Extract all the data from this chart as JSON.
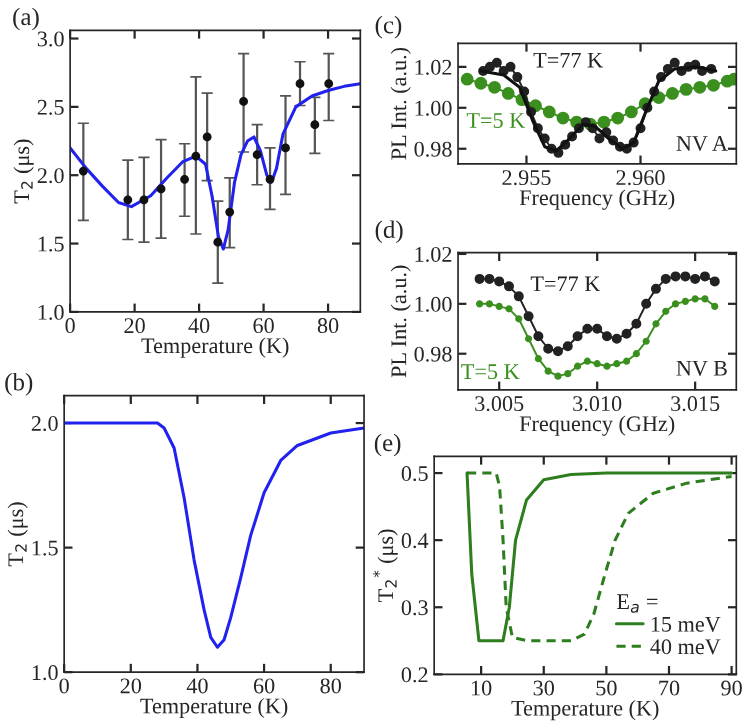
{
  "chart_data": [
    {
      "type": "scatter",
      "title": "(a)",
      "xlabel": "Temperature (K)",
      "ylabel": "T$_{2}$ (μs)",
      "xlim": [
        0,
        90
      ],
      "ylim": [
        1.0,
        3.06
      ],
      "xticks": [
        0,
        20,
        40,
        60,
        80
      ],
      "yticks": [
        {
          "value": 1.0,
          "label": "1.0"
        },
        {
          "value": 1.5,
          "label": "1.5"
        },
        {
          "value": 2.0,
          "label": "2.0"
        },
        {
          "value": 2.5,
          "label": "2.5"
        },
        {
          "value": 3.0,
          "label": "3.0"
        }
      ],
      "series": [
        {
          "type": "scatter",
          "color": "#111111",
          "marker": "circle",
          "x": [
            4.1,
            17.9,
            22.9,
            28.2,
            35.5,
            39,
            42.5,
            45.8,
            49.5,
            53.8,
            58,
            62,
            66.8,
            71.3,
            75.9,
            80.2
          ],
          "values": [
            2.03,
            1.82,
            1.82,
            1.9,
            1.97,
            2.14,
            2.28,
            1.51,
            1.73,
            2.54,
            2.15,
            1.97,
            2.2,
            2.67,
            2.37,
            2.67
          ],
          "errors": [
            [
              1.67,
              2.38
            ],
            [
              1.53,
              2.11
            ],
            [
              1.51,
              2.13
            ],
            [
              1.54,
              2.26
            ],
            [
              1.7,
              2.23
            ],
            [
              1.57,
              2.72
            ],
            [
              1.96,
              2.6
            ],
            [
              1.21,
              1.81
            ],
            [
              1.47,
              1.98
            ],
            [
              2.17,
              2.89
            ],
            [
              1.93,
              2.37
            ],
            [
              1.75,
              2.2
            ],
            [
              1.86,
              2.58
            ],
            [
              2.51,
              2.83
            ],
            [
              2.16,
              2.57
            ],
            [
              2.4,
              2.89
            ]
          ]
        },
        {
          "type": "line",
          "color": "#2222ee",
          "x": [
            0,
            5,
            10,
            15,
            19,
            25,
            30,
            35,
            39,
            42,
            44,
            46,
            47.5,
            49,
            51,
            53,
            55,
            57,
            59,
            61,
            62.5,
            64,
            66,
            70,
            75,
            80,
            85,
            90
          ],
          "values": [
            2.2,
            2.05,
            1.92,
            1.8,
            1.77,
            1.85,
            1.98,
            2.1,
            2.14,
            2.08,
            1.85,
            1.55,
            1.46,
            1.6,
            1.95,
            2.15,
            2.25,
            2.28,
            2.18,
            2.0,
            1.95,
            2.05,
            2.3,
            2.5,
            2.58,
            2.62,
            2.65,
            2.67
          ]
        }
      ]
    },
    {
      "type": "line",
      "title": "(b)",
      "xlabel": "Temperature (K)",
      "ylabel": "T$_{2}$ (μs)",
      "xlim": [
        0,
        90
      ],
      "ylim": [
        1.0,
        2.11
      ],
      "xticks": [
        0,
        20,
        40,
        60,
        80
      ],
      "yticks": [
        {
          "value": 1.0,
          "label": "1.0"
        },
        {
          "value": 1.5,
          "label": "1.5"
        },
        {
          "value": 2.0,
          "label": "2.0"
        }
      ],
      "series": [
        {
          "color": "#2222ee",
          "x": [
            0,
            10,
            20,
            28,
            30,
            33,
            36,
            39,
            42,
            44,
            46,
            48,
            50,
            53,
            56,
            60,
            65,
            70,
            80,
            90
          ],
          "values": [
            2.0,
            2.0,
            2.0,
            2.0,
            1.98,
            1.9,
            1.7,
            1.45,
            1.25,
            1.14,
            1.1,
            1.13,
            1.22,
            1.38,
            1.55,
            1.72,
            1.85,
            1.91,
            1.96,
            1.98
          ]
        }
      ]
    },
    {
      "type": "line",
      "title": "(c)",
      "xlabel": "Frequency (GHz)",
      "ylabel": "PL Int. (a.u.)",
      "annotations": [
        "NV A"
      ],
      "xlim": [
        2.952,
        2.9642
      ],
      "ylim": [
        0.9726,
        1.0315
      ],
      "xticks": [
        {
          "value": 2.955,
          "label": "2.955"
        },
        {
          "value": 2.96,
          "label": "2.960"
        }
      ],
      "yticks": [
        {
          "value": 0.98,
          "label": "0.98"
        },
        {
          "value": 1.0,
          "label": "1.00"
        },
        {
          "value": 1.02,
          "label": "1.02"
        }
      ],
      "series": [
        {
          "name": "T=5 K",
          "color": "#3a8f1e",
          "marker": "circle",
          "x": [
            2.9524,
            2.953,
            2.9536,
            2.9542,
            2.9548,
            2.9554,
            2.956,
            2.9566,
            2.9572,
            2.9578,
            2.9584,
            2.959,
            2.9596,
            2.9602,
            2.9608,
            2.9614,
            2.962,
            2.9626,
            2.9632,
            2.9638,
            2.9641
          ],
          "values": [
            1.014,
            1.012,
            1.01,
            1.007,
            1.004,
            1.001,
            0.998,
            0.995,
            0.993,
            0.992,
            0.993,
            0.995,
            0.998,
            1.002,
            1.005,
            1.007,
            1.009,
            1.01,
            1.011,
            1.013,
            1.014
          ]
        },
        {
          "name": "T=77 K",
          "color": "#222222",
          "marker": "circle",
          "x": [
            2.9531,
            2.9534,
            2.9537,
            2.954,
            2.9543,
            2.9546,
            2.9549,
            2.9552,
            2.9555,
            2.9558,
            2.9561,
            2.9564,
            2.9567,
            2.957,
            2.9573,
            2.9576,
            2.9579,
            2.9582,
            2.9585,
            2.9588,
            2.9591,
            2.9594,
            2.9597,
            2.96,
            2.9603,
            2.9606,
            2.9609,
            2.9612,
            2.9615,
            2.9618,
            2.9621,
            2.9624,
            2.9627,
            2.9631
          ],
          "values": [
            1.018,
            1.02,
            1.022,
            1.018,
            1.02,
            1.015,
            1.008,
            0.998,
            0.99,
            0.985,
            0.98,
            0.978,
            0.982,
            0.986,
            0.99,
            0.993,
            0.99,
            0.985,
            0.988,
            0.984,
            0.981,
            0.98,
            0.983,
            0.99,
            1.0,
            1.008,
            1.015,
            1.019,
            1.022,
            1.018,
            1.02,
            1.021,
            1.018,
            1.019
          ]
        },
        {
          "color": "#111111",
          "x": [
            2.953,
            2.954,
            2.9547,
            2.9553,
            2.9558,
            2.9563,
            2.9568,
            2.9575,
            2.958,
            2.9586,
            2.9592,
            2.9597,
            2.9603,
            2.9608,
            2.9615,
            2.9625,
            2.9633
          ],
          "values": [
            1.018,
            1.016,
            1.01,
            0.993,
            0.981,
            0.979,
            0.984,
            0.992,
            0.991,
            0.985,
            0.98,
            0.983,
            1.0,
            1.013,
            1.019,
            1.02,
            1.018
          ]
        }
      ]
    },
    {
      "type": "line",
      "title": "(d)",
      "xlabel": "Frequency (GHz)",
      "ylabel": "PL Int. (a.u.)",
      "annotations": [
        "NV B"
      ],
      "xlim": [
        3.0029,
        3.0171
      ],
      "ylim": [
        0.9655,
        1.0205
      ],
      "xticks": [
        {
          "value": 3.005,
          "label": "3.005"
        },
        {
          "value": 3.01,
          "label": "3.010"
        },
        {
          "value": 3.015,
          "label": "3.015"
        }
      ],
      "yticks": [
        {
          "value": 0.98,
          "label": "0.98"
        },
        {
          "value": 1.0,
          "label": "1.00"
        },
        {
          "value": 1.02,
          "label": "1.02"
        }
      ],
      "series": [
        {
          "name": "T=77 K",
          "color": "#222222",
          "marker": "circle",
          "x": [
            3.004,
            3.0045,
            3.005,
            3.0055,
            3.006,
            3.0065,
            3.007,
            3.0075,
            3.008,
            3.0085,
            3.009,
            3.0095,
            3.01,
            3.0105,
            3.011,
            3.0115,
            3.012,
            3.0125,
            3.013,
            3.0135,
            3.014,
            3.0145,
            3.015,
            3.0155,
            3.016
          ],
          "values": [
            1.01,
            1.01,
            1.009,
            1.007,
            1.003,
            0.995,
            0.987,
            0.982,
            0.981,
            0.983,
            0.987,
            0.99,
            0.99,
            0.987,
            0.986,
            0.988,
            0.992,
            1.0,
            1.006,
            1.01,
            1.011,
            1.011,
            1.01,
            1.011,
            1.009
          ]
        },
        {
          "name": "T=5 K",
          "color": "#3a8f1e",
          "marker": "circle",
          "x": [
            3.004,
            3.0045,
            3.005,
            3.0055,
            3.006,
            3.0065,
            3.007,
            3.0075,
            3.008,
            3.0085,
            3.009,
            3.0095,
            3.01,
            3.0105,
            3.011,
            3.0115,
            3.012,
            3.0125,
            3.013,
            3.0135,
            3.014,
            3.0145,
            3.015,
            3.0155,
            3.016
          ],
          "values": [
            1.0,
            1.0,
            0.999,
            0.998,
            0.994,
            0.986,
            0.978,
            0.973,
            0.971,
            0.972,
            0.975,
            0.977,
            0.976,
            0.975,
            0.976,
            0.977,
            0.98,
            0.985,
            0.992,
            0.997,
            1.0,
            1.001,
            1.002,
            1.002,
            0.999
          ]
        }
      ]
    },
    {
      "type": "line",
      "title": "(e)",
      "xlabel": "Temperature (K)",
      "ylabel": "T$_{2}$$^{*}$ (μs)",
      "legend_title": "E$_{a}$ =",
      "legend": "bottom right",
      "xlim": [
        -5,
        91.5
      ],
      "ylim": [
        0.2,
        0.525
      ],
      "xticks": [
        10,
        30,
        50,
        70,
        90
      ],
      "yticks": [
        0.2,
        0.3,
        0.4,
        0.5
      ],
      "series": [
        {
          "name": "15 meV",
          "color": "#2e7d1e",
          "line_style": "solid",
          "x": [
            5.5,
            7,
            9.3,
            12,
            17,
            19,
            21,
            24.5,
            30,
            38.7,
            50,
            70,
            90
          ],
          "values": [
            0.5,
            0.35,
            0.25,
            0.25,
            0.25,
            0.3,
            0.4,
            0.46,
            0.49,
            0.498,
            0.5,
            0.5,
            0.5
          ]
        },
        {
          "name": "40 meV",
          "color": "#2e7d1e",
          "line_style": "dashed",
          "x": [
            5.5,
            10,
            14.8,
            15.9,
            17,
            18,
            20,
            25,
            30,
            38.7,
            43,
            46,
            49.6,
            52.8,
            57,
            65,
            75.7,
            90
          ],
          "values": [
            0.5,
            0.5,
            0.5,
            0.48,
            0.4,
            0.3,
            0.255,
            0.25,
            0.25,
            0.25,
            0.26,
            0.29,
            0.35,
            0.4,
            0.44,
            0.47,
            0.485,
            0.495
          ]
        }
      ]
    }
  ]
}
